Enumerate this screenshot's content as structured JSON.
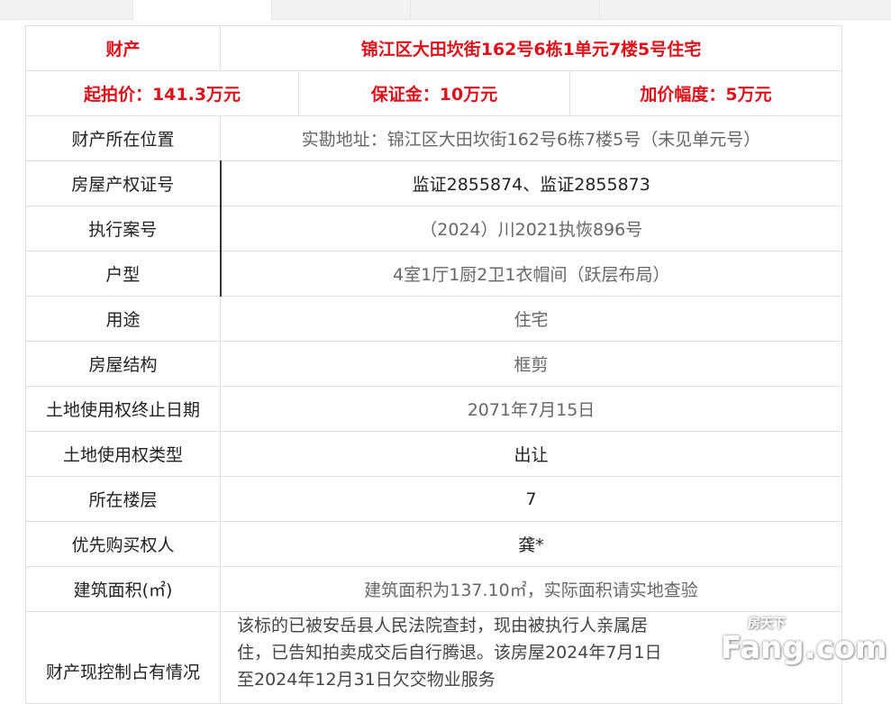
{
  "tabs": [
    "",
    "",
    "",
    "",
    ""
  ],
  "header": {
    "label": "财产",
    "value": "锦江区大田坎街162号6栋1单元7楼5号住宅"
  },
  "prices": {
    "start": "起拍价：141.3万元",
    "deposit": "保证金：10万元",
    "increment": "加价幅度：5万元"
  },
  "rows": [
    {
      "label": "财产所在位置",
      "value": "实勘地址：锦江区大田坎街162号6栋7楼5号（未见单元号）"
    },
    {
      "label": "房屋产权证号",
      "value": "监证2855874、监证2855873"
    },
    {
      "label": "执行案号",
      "value": "（2024）川2021执恢896号"
    },
    {
      "label": "户型",
      "value": "4室1厅1厨2卫1衣帽间（跃层布局）"
    },
    {
      "label": "用途",
      "value": "住宅"
    },
    {
      "label": "房屋结构",
      "value": "框剪"
    },
    {
      "label": "土地使用权终止日期",
      "value": "2071年7月15日"
    },
    {
      "label": "土地使用权类型",
      "value": "出让"
    },
    {
      "label": "所在楼层",
      "value": "7"
    },
    {
      "label": "优先购买权人",
      "value": "龚*"
    },
    {
      "label": "建筑面积(㎡)",
      "value": "建筑面积为137.10㎡，实际面积请实地查验"
    },
    {
      "label": "财产现控制占有情况",
      "value": "该标的已被安岳县人民法院查封，现由被执行人亲属居住，已告知拍卖成交后自行腾退。该房屋2024年7月1日至2024年12月31日欠交物业服务"
    }
  ],
  "watermark": {
    "brand": "Fang.com",
    "cn": "房天下"
  }
}
